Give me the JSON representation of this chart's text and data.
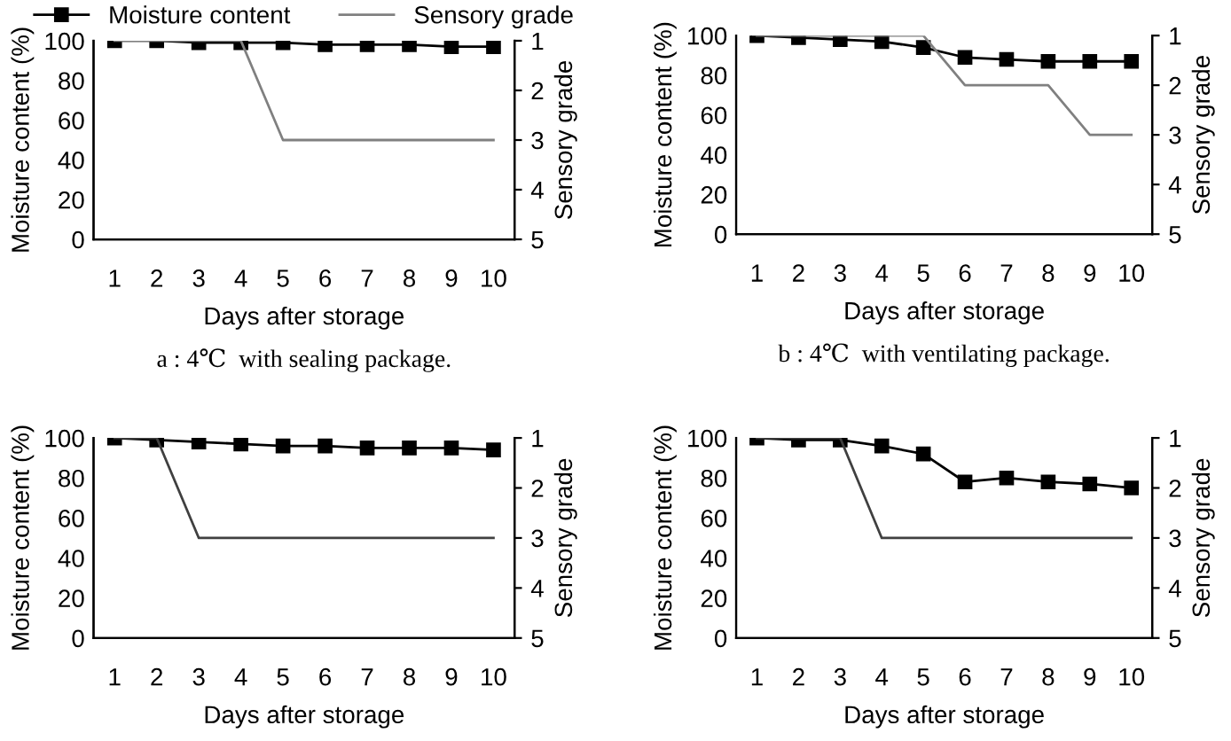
{
  "chart_data": [
    {
      "type": "line",
      "categories": [
        "1",
        "2",
        "3",
        "4",
        "5",
        "6",
        "7",
        "8",
        "9",
        "10"
      ],
      "xlabel": "Days after storage",
      "ylabel": "Moisture content (%)",
      "y2label": "Sensory grade",
      "ylim": [
        0,
        100
      ],
      "yticks": [
        0,
        20,
        40,
        60,
        80,
        100
      ],
      "y2lim": [
        5,
        1
      ],
      "y2ticks": [
        5,
        4,
        3,
        2,
        1
      ],
      "legend": "top",
      "grid": false,
      "annotations": [
        "a : 4℃  with sealing package."
      ],
      "series": [
        {
          "name": "Moisture content",
          "color": "#000000",
          "marker": "square",
          "values": [
            100,
            100,
            99,
            99,
            99,
            98,
            98,
            98,
            97,
            97
          ]
        },
        {
          "name": "Sensory grade",
          "color": "#808080",
          "marker": "none",
          "axis": "y2",
          "values": [
            1,
            1,
            1,
            1,
            3,
            3,
            3,
            3,
            3,
            3
          ]
        }
      ]
    },
    {
      "type": "line",
      "categories": [
        "1",
        "2",
        "3",
        "4",
        "5",
        "6",
        "7",
        "8",
        "9",
        "10"
      ],
      "xlabel": "Days after storage",
      "ylabel": "Moisture content (%)",
      "y2label": "Sensory grade",
      "ylim": [
        0,
        100
      ],
      "yticks": [
        0,
        20,
        40,
        60,
        80,
        100
      ],
      "y2lim": [
        5,
        1
      ],
      "y2ticks": [
        5,
        4,
        3,
        2,
        1
      ],
      "grid": false,
      "annotations": [
        "b : 4℃  with ventilating package."
      ],
      "series": [
        {
          "color": "#000000",
          "marker": "square",
          "values": [
            100,
            99,
            98,
            97,
            94,
            89,
            88,
            87,
            87,
            87
          ]
        },
        {
          "color": "#808080",
          "marker": "none",
          "axis": "y2",
          "values": [
            1,
            1,
            1,
            1,
            1,
            2,
            2,
            2,
            3,
            3
          ]
        }
      ]
    },
    {
      "type": "line",
      "categories": [
        "1",
        "2",
        "3",
        "4",
        "5",
        "6",
        "7",
        "8",
        "9",
        "10"
      ],
      "xlabel": "Days after storage",
      "ylabel": "Moisture content (%)",
      "y2label": "Sensory grade",
      "ylim": [
        0,
        100
      ],
      "yticks": [
        0,
        20,
        40,
        60,
        80,
        100
      ],
      "y2lim": [
        5,
        1
      ],
      "y2ticks": [
        5,
        4,
        3,
        2,
        1
      ],
      "grid": false,
      "series": [
        {
          "color": "#000000",
          "marker": "square",
          "values": [
            100,
            99,
            98,
            97,
            96,
            96,
            95,
            95,
            95,
            94
          ]
        },
        {
          "color": "#404040",
          "marker": "none",
          "axis": "y2",
          "values": [
            1,
            1,
            3,
            3,
            3,
            3,
            3,
            3,
            3,
            3
          ]
        }
      ]
    },
    {
      "type": "line",
      "categories": [
        "1",
        "2",
        "3",
        "4",
        "5",
        "6",
        "7",
        "8",
        "9",
        "10"
      ],
      "xlabel": "Days after storage",
      "ylabel": "Moisture content (%)",
      "y2label": "Sensory grade",
      "ylim": [
        0,
        100
      ],
      "yticks": [
        0,
        20,
        40,
        60,
        80,
        100
      ],
      "y2lim": [
        5,
        1
      ],
      "y2ticks": [
        5,
        4,
        3,
        2,
        1
      ],
      "grid": false,
      "series": [
        {
          "color": "#000000",
          "marker": "square",
          "values": [
            100,
            99,
            99,
            96,
            92,
            78,
            80,
            78,
            77,
            75
          ]
        },
        {
          "color": "#404040",
          "marker": "none",
          "axis": "y2",
          "values": [
            1,
            1,
            1,
            3,
            3,
            3,
            3,
            3,
            3,
            3
          ]
        }
      ]
    }
  ]
}
